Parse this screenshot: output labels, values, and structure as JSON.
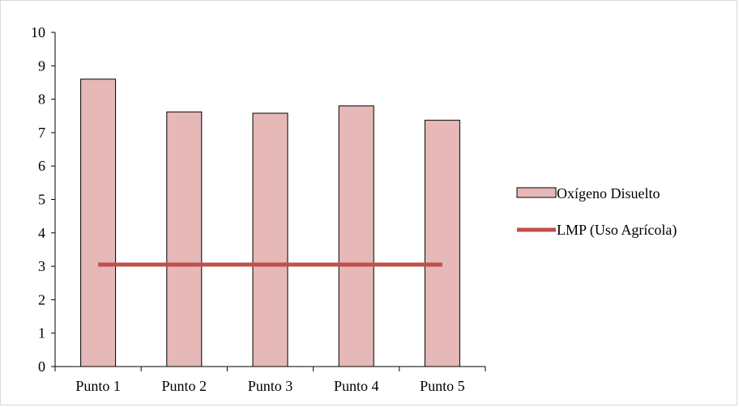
{
  "chart_data": {
    "type": "bar",
    "categories": [
      "Punto 1",
      "Punto 2",
      "Punto 3",
      "Punto 4",
      "Punto 5"
    ],
    "series": [
      {
        "name": "Oxígeno Disuelto",
        "type": "bar",
        "values": [
          8.6,
          7.62,
          7.58,
          7.8,
          7.37
        ],
        "color": "#e6b8b7"
      },
      {
        "name": "LMP (Uso Agrícola)",
        "type": "line",
        "values": [
          3.05,
          3.05,
          3.05,
          3.05,
          3.05
        ],
        "color": "#c0504d"
      }
    ],
    "title": "",
    "xlabel": "",
    "ylabel": "",
    "ylim": [
      0,
      10
    ],
    "yticks": [
      "0",
      "1",
      "2",
      "3",
      "4",
      "5",
      "6",
      "7",
      "8",
      "9",
      "10"
    ],
    "grid": false,
    "legend_position": "right"
  }
}
